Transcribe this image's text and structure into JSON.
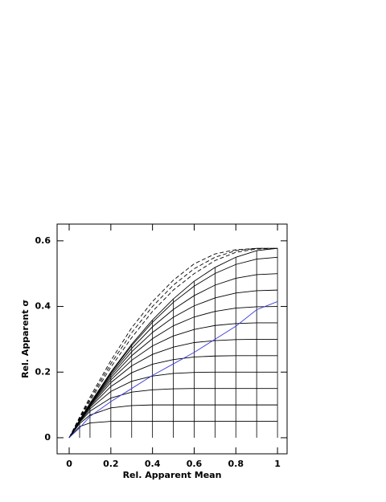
{
  "chart_data": {
    "type": "line",
    "xlabel": "Rel. Apparent Mean",
    "ylabel": "Rel. Apparent σ",
    "x": [
      0,
      0.05,
      0.1,
      0.2,
      0.3,
      0.4,
      0.5,
      0.6,
      0.7,
      0.8,
      0.9,
      1
    ],
    "xlim": [
      -0.058,
      1.046
    ],
    "ylim": [
      -0.049,
      0.651
    ],
    "xticks": [
      0,
      0.2,
      0.4,
      0.6,
      0.8,
      1
    ],
    "yticks": [
      0,
      0.2,
      0.4,
      0.6
    ],
    "series": [
      {
        "color": "#000000",
        "dashed": false,
        "values": [
          0,
          0.034,
          0.045,
          0.05,
          0.05,
          0.05,
          0.05,
          0.05,
          0.05,
          0.05,
          0.05,
          0.05
        ]
      },
      {
        "color": "#000000",
        "dashed": false,
        "values": [
          0,
          0.043,
          0.069,
          0.091,
          0.098,
          0.1,
          0.1,
          0.1,
          0.1,
          0.1,
          0.1,
          0.1
        ]
      },
      {
        "color": "#000000",
        "dashed": false,
        "values": [
          0,
          0.047,
          0.081,
          0.121,
          0.139,
          0.146,
          0.149,
          0.15,
          0.15,
          0.15,
          0.15,
          0.15
        ]
      },
      {
        "color": "#000000",
        "dashed": false,
        "values": [
          0,
          0.049,
          0.088,
          0.141,
          0.172,
          0.188,
          0.196,
          0.199,
          0.2,
          0.2,
          0.2,
          0.2
        ]
      },
      {
        "color": "#000000",
        "dashed": false,
        "values": [
          0,
          0.0505,
          0.093,
          0.156,
          0.198,
          0.224,
          0.238,
          0.246,
          0.249,
          0.25,
          0.25,
          0.25
        ]
      },
      {
        "color": "#000000",
        "dashed": false,
        "values": [
          0,
          0.052,
          0.096,
          0.168,
          0.219,
          0.254,
          0.276,
          0.29,
          0.296,
          0.299,
          0.3,
          0.3
        ]
      },
      {
        "color": "#000000",
        "dashed": false,
        "values": [
          0,
          0.052,
          0.099,
          0.176,
          0.236,
          0.28,
          0.31,
          0.33,
          0.342,
          0.348,
          0.35,
          0.35
        ]
      },
      {
        "color": "#000000",
        "dashed": false,
        "values": [
          0,
          0.053,
          0.101,
          0.183,
          0.25,
          0.302,
          0.341,
          0.368,
          0.385,
          0.395,
          0.399,
          0.4
        ]
      },
      {
        "color": "#000000",
        "dashed": false,
        "values": [
          0,
          0.053,
          0.102,
          0.189,
          0.262,
          0.321,
          0.367,
          0.402,
          0.426,
          0.441,
          0.448,
          0.45
        ]
      },
      {
        "color": "#000000",
        "dashed": false,
        "values": [
          0,
          0.053,
          0.103,
          0.194,
          0.272,
          0.338,
          0.391,
          0.433,
          0.465,
          0.486,
          0.497,
          0.5
        ]
      },
      {
        "color": "#000000",
        "dashed": false,
        "values": [
          0,
          0.0536,
          0.1045,
          0.198,
          0.2805,
          0.352,
          0.4125,
          0.462,
          0.5005,
          0.528,
          0.5445,
          0.55
        ]
      },
      {
        "color": "#000000",
        "dashed": false,
        "values": [
          0,
          0.054,
          0.105,
          0.2,
          0.285,
          0.359,
          0.423,
          0.477,
          0.519,
          0.55,
          0.57,
          0.577
        ]
      },
      {
        "color": "#000000",
        "dashed": true,
        "values": [
          0,
          0.057,
          0.112,
          0.215,
          0.305,
          0.385,
          0.45,
          0.5,
          0.54,
          0.565,
          0.575,
          0.577
        ]
      },
      {
        "color": "#000000",
        "dashed": true,
        "values": [
          0,
          0.06,
          0.118,
          0.225,
          0.32,
          0.4,
          0.465,
          0.515,
          0.55,
          0.57,
          0.577,
          0.577
        ]
      },
      {
        "color": "#000000",
        "dashed": true,
        "values": [
          0,
          0.063,
          0.124,
          0.235,
          0.335,
          0.415,
          0.48,
          0.53,
          0.56,
          0.573,
          0.577,
          0.577
        ]
      },
      {
        "color": "#3b3bdc",
        "dashed": false,
        "values": [
          0,
          0.03,
          0.065,
          0.11,
          0.15,
          0.19,
          0.225,
          0.26,
          0.3,
          0.34,
          0.39,
          0.415
        ]
      }
    ]
  }
}
